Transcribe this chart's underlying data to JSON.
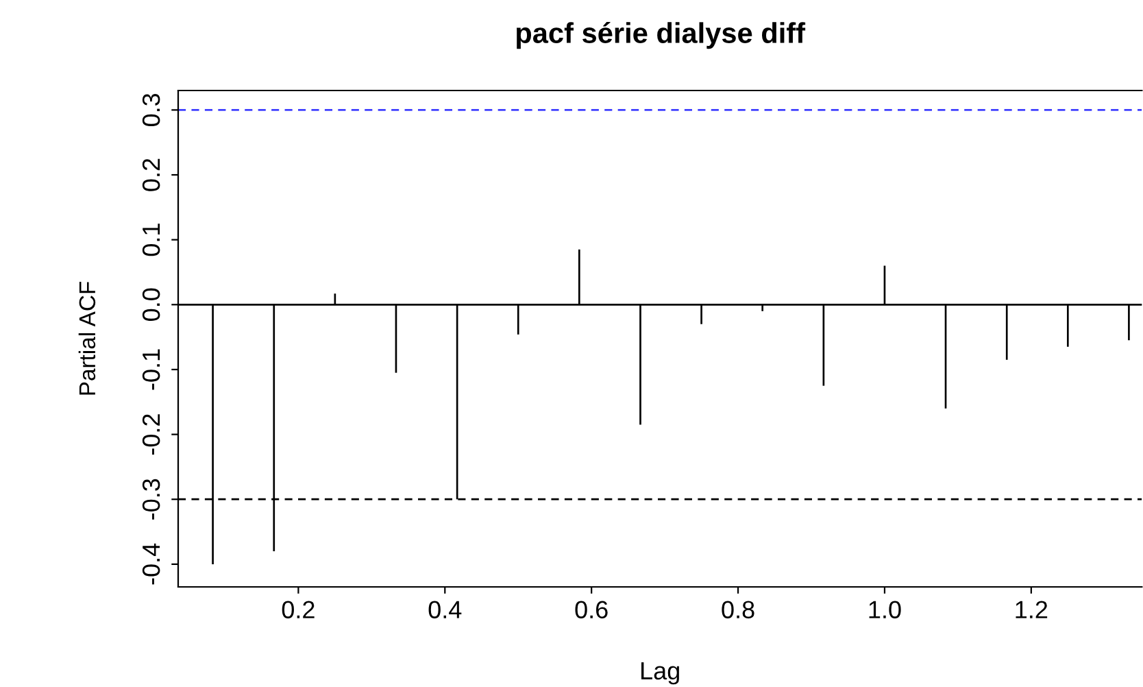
{
  "chart_data": {
    "type": "bar",
    "title": "pacf série dialyse diff",
    "xlabel": "Lag",
    "ylabel": "Partial ACF",
    "x": [
      0.0833,
      0.1667,
      0.25,
      0.3333,
      0.4167,
      0.5,
      0.5833,
      0.6667,
      0.75,
      0.8333,
      0.9167,
      1.0,
      1.0833,
      1.1667,
      1.25,
      1.3333
    ],
    "values": [
      -0.4,
      -0.38,
      0.017,
      -0.105,
      -0.3,
      -0.046,
      0.085,
      -0.185,
      -0.03,
      -0.01,
      -0.125,
      0.06,
      -0.16,
      -0.085,
      -0.065,
      -0.055
    ],
    "color": "#000000",
    "xlim": [
      0.036,
      1.351
    ],
    "xticks": [
      0.2,
      0.4,
      0.6,
      0.8,
      {
        "value": 1,
        "label": "1.0"
      },
      1.2
    ],
    "ylim": [
      -0.435,
      0.33
    ],
    "yticks": [
      -0.4,
      -0.3,
      -0.2,
      -0.1,
      {
        "value": 0,
        "label": "0.0"
      },
      0.1,
      0.2,
      0.3
    ],
    "ref_lines": [
      {
        "axis": "y",
        "value": 0.3,
        "color": "#4040ff",
        "line_style": "dashed"
      },
      {
        "axis": "y",
        "value": -0.3,
        "color": "#000000",
        "line_style": "dashed"
      },
      {
        "axis": "y",
        "value": 0,
        "color": "#000000",
        "line_style": "solid"
      }
    ],
    "grid": false,
    "legend": false
  }
}
